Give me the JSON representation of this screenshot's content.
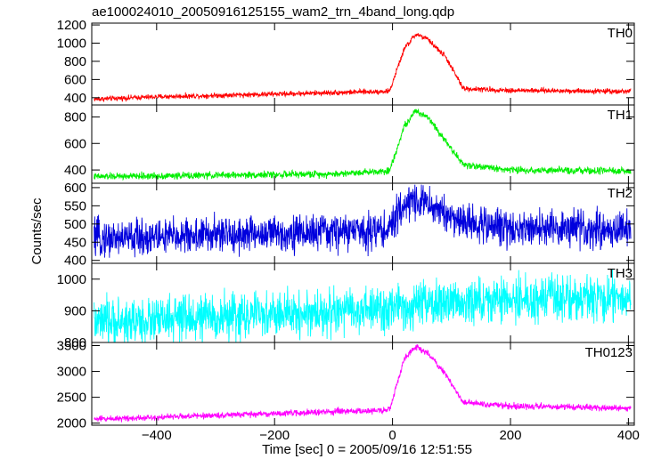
{
  "chart_data": {
    "type": "line",
    "title": "ae100024010_20050916125155_wam2_trn_4band_long.qdp",
    "xlabel": "Time [sec] 0 = 2005/09/16 12:51:55",
    "ylabel": "Counts/sec",
    "xlim": [
      -510,
      410
    ],
    "x_ticks": [
      -400,
      -200,
      0,
      200,
      400
    ],
    "x_tick_labels": [
      "−400",
      "−200",
      "0",
      "200",
      "400"
    ],
    "grid": false,
    "panels": [
      {
        "name": "TH0",
        "color": "#ff0000",
        "ylim": [
          320,
          1220
        ],
        "y_ticks": [
          400,
          600,
          800,
          1000,
          1200
        ],
        "y_tick_labels": [
          "400",
          "600",
          "800",
          "1000",
          "1200"
        ],
        "profile": [
          [
            -500,
            385
          ],
          [
            -400,
            410
          ],
          [
            -200,
            440
          ],
          [
            -5,
            470
          ],
          [
            20,
            940
          ],
          [
            40,
            1100
          ],
          [
            60,
            1040
          ],
          [
            90,
            850
          ],
          [
            120,
            500
          ],
          [
            200,
            480
          ],
          [
            400,
            470
          ]
        ],
        "noise": 22
      },
      {
        "name": "TH1",
        "color": "#00ee00",
        "ylim": [
          300,
          890
        ],
        "y_ticks": [
          400,
          600,
          800
        ],
        "y_tick_labels": [
          "400",
          "600",
          "800"
        ],
        "profile": [
          [
            -500,
            350
          ],
          [
            -300,
            360
          ],
          [
            -100,
            370
          ],
          [
            -5,
            395
          ],
          [
            20,
            730
          ],
          [
            40,
            845
          ],
          [
            60,
            800
          ],
          [
            90,
            620
          ],
          [
            120,
            440
          ],
          [
            200,
            400
          ],
          [
            400,
            390
          ]
        ],
        "noise": 20
      },
      {
        "name": "TH2",
        "color": "#0000dd",
        "ylim": [
          392,
          612
        ],
        "y_ticks": [
          400,
          450,
          500,
          550,
          600
        ],
        "y_tick_labels": [
          "400",
          "450",
          "500",
          "550",
          "600"
        ],
        "profile": [
          [
            -500,
            460
          ],
          [
            -300,
            470
          ],
          [
            -100,
            478
          ],
          [
            -5,
            485
          ],
          [
            20,
            555
          ],
          [
            40,
            570
          ],
          [
            70,
            545
          ],
          [
            120,
            505
          ],
          [
            200,
            490
          ],
          [
            400,
            485
          ]
        ],
        "noise": 38
      },
      {
        "name": "TH3",
        "color": "#00ffff",
        "ylim": [
          800,
          1050
        ],
        "y_ticks": [
          800,
          900,
          1000
        ],
        "y_tick_labels": [
          "800",
          "900",
          "1000"
        ],
        "profile": [
          [
            -500,
            860
          ],
          [
            -300,
            880
          ],
          [
            -100,
            895
          ],
          [
            0,
            905
          ],
          [
            100,
            925
          ],
          [
            200,
            935
          ],
          [
            400,
            940
          ]
        ],
        "noise": 55
      },
      {
        "name": "TH0123",
        "color": "#ff00ff",
        "ylim": [
          1960,
          3560
        ],
        "y_ticks": [
          2000,
          2500,
          3000,
          3500
        ],
        "y_tick_labels": [
          "2000",
          "2500",
          "3000",
          "3500"
        ],
        "profile": [
          [
            -500,
            2080
          ],
          [
            -300,
            2150
          ],
          [
            -100,
            2220
          ],
          [
            -5,
            2250
          ],
          [
            20,
            3250
          ],
          [
            40,
            3480
          ],
          [
            60,
            3350
          ],
          [
            90,
            2950
          ],
          [
            120,
            2400
          ],
          [
            200,
            2330
          ],
          [
            400,
            2290
          ]
        ],
        "noise": 45
      }
    ]
  }
}
